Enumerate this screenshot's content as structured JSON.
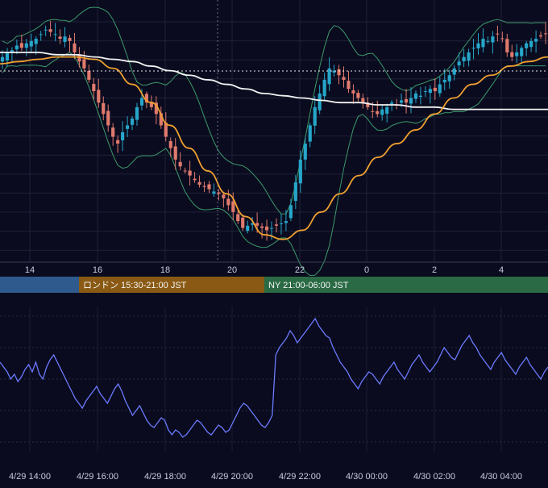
{
  "chart_data": [
    {
      "type": "candlestick",
      "panel": "price",
      "x_ticks": [
        "14",
        "16",
        "18",
        "20",
        "22",
        "0",
        "2",
        "4"
      ],
      "sessions": [
        {
          "label": "",
          "color": "#2e5a8e"
        },
        {
          "label": "ロンドン 15:30-21:00 JST",
          "color": "#8a5a14"
        },
        {
          "label": "NY 21:00-06:00 JST",
          "color": "#2a6a44"
        }
      ],
      "candle_closes": [
        0.6,
        0.62,
        0.63,
        0.65,
        0.64,
        0.66,
        0.67,
        0.68,
        0.7,
        0.72,
        0.71,
        0.7,
        0.68,
        0.69,
        0.67,
        0.62,
        0.58,
        0.55,
        0.5,
        0.45,
        0.4,
        0.35,
        0.3,
        0.25,
        0.22,
        0.27,
        0.3,
        0.33,
        0.38,
        0.42,
        0.4,
        0.38,
        0.35,
        0.3,
        0.25,
        0.2,
        0.15,
        0.12,
        0.1,
        0.08,
        0.06,
        0.04,
        0.03,
        0.02,
        0.01,
        0.0,
        -0.02,
        -0.05,
        -0.08,
        -0.12,
        -0.15,
        -0.14,
        -0.13,
        -0.14,
        -0.15,
        -0.16,
        -0.15,
        -0.14,
        -0.13,
        -0.12,
        -0.05,
        0.05,
        0.15,
        0.22,
        0.3,
        0.38,
        0.44,
        0.5,
        0.55,
        0.54,
        0.52,
        0.5,
        0.46,
        0.44,
        0.42,
        0.4,
        0.38,
        0.36,
        0.35,
        0.37,
        0.38,
        0.4,
        0.39,
        0.41,
        0.4,
        0.42,
        0.44,
        0.43,
        0.45,
        0.46,
        0.45,
        0.48,
        0.5,
        0.52,
        0.55,
        0.58,
        0.6,
        0.62,
        0.64,
        0.66,
        0.68,
        0.67,
        0.69,
        0.7,
        0.68,
        0.62,
        0.6,
        0.62,
        0.64,
        0.66,
        0.67,
        0.68,
        0.69,
        0.7
      ],
      "ma_orange": [
        0.57,
        0.58,
        0.59,
        0.6,
        0.6,
        0.59,
        0.55,
        0.48,
        0.4,
        0.3,
        0.2,
        0.1,
        0.0,
        -0.1,
        -0.18,
        -0.2,
        -0.16,
        -0.08,
        0.0,
        0.08,
        0.16,
        0.22,
        0.28,
        0.35,
        0.42,
        0.48,
        0.52,
        0.56,
        0.58,
        0.6
      ],
      "ma_white": [
        0.62,
        0.62,
        0.62,
        0.61,
        0.61,
        0.6,
        0.59,
        0.58,
        0.56,
        0.54,
        0.52,
        0.5,
        0.48,
        0.46,
        0.44,
        0.43,
        0.42,
        0.41,
        0.4,
        0.4,
        0.39,
        0.39,
        0.38,
        0.38,
        0.37,
        0.37,
        0.37,
        0.37,
        0.37,
        0.37
      ]
    },
    {
      "type": "line",
      "panel": "oscillator",
      "x_ticks": [
        "4/29 14:00",
        "4/29 16:00",
        "4/29 18:00",
        "4/29 20:00",
        "4/29 22:00",
        "4/30 00:00",
        "4/30 02:00",
        "4/30 04:00"
      ],
      "values": [
        52,
        50,
        48,
        45,
        47,
        44,
        46,
        49,
        51,
        48,
        52,
        47,
        45,
        50,
        53,
        55,
        52,
        49,
        46,
        43,
        40,
        37,
        35,
        33,
        36,
        38,
        40,
        42,
        39,
        37,
        35,
        38,
        41,
        43,
        40,
        36,
        33,
        30,
        32,
        34,
        31,
        28,
        26,
        25,
        27,
        29,
        28,
        24,
        22,
        24,
        23,
        21,
        22,
        24,
        26,
        28,
        27,
        25,
        23,
        22,
        24,
        26,
        25,
        23,
        24,
        27,
        30,
        33,
        35,
        34,
        32,
        30,
        28,
        26,
        25,
        27,
        30,
        55,
        58,
        60,
        62,
        65,
        63,
        60,
        62,
        64,
        66,
        68,
        70,
        67,
        65,
        63,
        62,
        58,
        55,
        52,
        50,
        48,
        45,
        43,
        41,
        44,
        46,
        48,
        47,
        45,
        43,
        46,
        48,
        50,
        52,
        49,
        47,
        45,
        48,
        51,
        53,
        55,
        52,
        50,
        48,
        50,
        52,
        55,
        58,
        56,
        54,
        53,
        56,
        59,
        61,
        63,
        60,
        58,
        55,
        53,
        51,
        49,
        52,
        54,
        56,
        53,
        51,
        49,
        47,
        50,
        52,
        54,
        51,
        49,
        47,
        45,
        48,
        50
      ]
    }
  ]
}
